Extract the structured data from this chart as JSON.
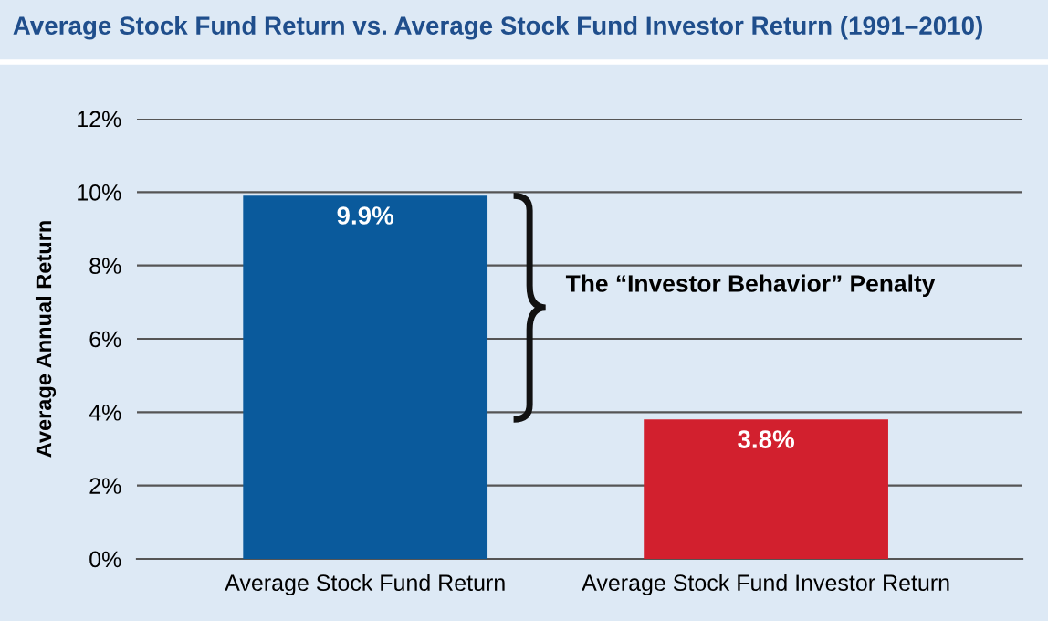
{
  "chart_data": {
    "type": "bar",
    "title": "Average Stock Fund Return vs. Average Stock Fund Investor Return (1991–2010)",
    "ylabel": "Average Annual Return",
    "categories": [
      "Average Stock Fund Return",
      "Average Stock Fund Investor Return"
    ],
    "values": [
      9.9,
      3.8
    ],
    "colors": [
      "#0a5a9c",
      "#d2202e"
    ],
    "value_labels": [
      "9.9%",
      "3.8%"
    ],
    "ylim": [
      0,
      12
    ],
    "yticks": [
      {
        "value": 0,
        "label": "0%"
      },
      {
        "value": 2,
        "label": "2%"
      },
      {
        "value": 4,
        "label": "4%"
      },
      {
        "value": 6,
        "label": "6%"
      },
      {
        "value": 8,
        "label": "8%"
      },
      {
        "value": 10,
        "label": "10%"
      },
      {
        "value": 12,
        "label": "12%"
      }
    ],
    "grid": "y",
    "annotations": [
      "The “Investor Behavior” Penalty"
    ]
  }
}
